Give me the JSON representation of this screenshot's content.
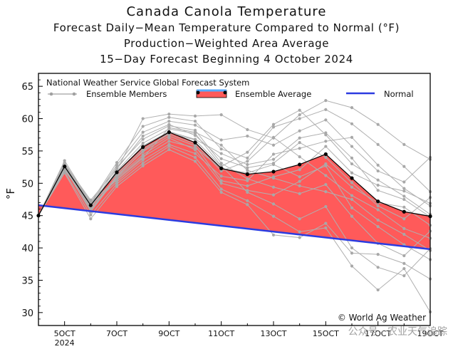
{
  "page": {
    "title": "Canada Canola Temperature",
    "subtitle1": "Forecast Daily−Mean Temperature Compared to Normal (°F)",
    "subtitle2": "Production−Weighted Area Average",
    "subtitle3": "15−Day Forecast Beginning 4 October 2024",
    "watermark": "公众号 · 农业天气追踪"
  },
  "chart_data": {
    "type": "line",
    "title": "Canada Canola Temperature",
    "ylabel": "°F",
    "xlabel": "",
    "ylim": [
      28,
      67
    ],
    "xlim": [
      4,
      19
    ],
    "grid": false,
    "source_label": "National Weather Service Global Forecast System",
    "credit": "© World Ag Weather",
    "legend": [
      {
        "name": "Ensemble Members",
        "color": "#a0a0a0"
      },
      {
        "name": "Ensemble Average",
        "color": "#ff5a5a"
      },
      {
        "name": "Normal",
        "color": "#2b3be0"
      }
    ],
    "y_ticks": [
      30,
      35,
      40,
      45,
      50,
      55,
      60,
      65
    ],
    "x_ticks": [
      {
        "x": 5,
        "label": "5OCT",
        "sublabel": "2024"
      },
      {
        "x": 7,
        "label": "7OCT",
        "sublabel": ""
      },
      {
        "x": 9,
        "label": "9OCT",
        "sublabel": ""
      },
      {
        "x": 11,
        "label": "11OCT",
        "sublabel": ""
      },
      {
        "x": 13,
        "label": "13OCT",
        "sublabel": ""
      },
      {
        "x": 15,
        "label": "15OCT",
        "sublabel": ""
      },
      {
        "x": 17,
        "label": "17OCT",
        "sublabel": ""
      },
      {
        "x": 19,
        "label": "19OCT",
        "sublabel": ""
      }
    ],
    "ensemble_average": {
      "name": "Ensemble Average",
      "x": [
        4,
        5,
        6,
        7,
        8,
        9,
        10,
        11,
        12,
        13,
        14,
        15,
        16,
        17,
        18,
        19
      ],
      "y": [
        45.0,
        52.6,
        46.6,
        51.7,
        55.6,
        57.9,
        56.3,
        52.3,
        51.4,
        51.8,
        52.9,
        54.5,
        50.8,
        47.2,
        45.6,
        44.9
      ]
    },
    "normal": {
      "name": "Normal",
      "x": [
        4,
        19
      ],
      "y": [
        46.6,
        39.8
      ]
    },
    "ensemble_members": [
      [
        45.0,
        53.5,
        47.0,
        53.2,
        58.8,
        60.2,
        59.6,
        55.3,
        53.9,
        58.7,
        60.0,
        61.4,
        59.2,
        56.0,
        52.6,
        48.7
      ],
      [
        45.0,
        53.2,
        46.8,
        52.8,
        57.9,
        59.6,
        59.0,
        56.7,
        57.3,
        55.9,
        58.1,
        59.8,
        55.7,
        51.9,
        50.2,
        54.0
      ],
      [
        45.0,
        53.1,
        46.3,
        52.5,
        56.8,
        58.9,
        58.2,
        53.1,
        50.7,
        49.4,
        48.4,
        49.8,
        44.9,
        40.7,
        38.8,
        42.6
      ],
      [
        45.0,
        52.9,
        46.5,
        51.9,
        56.2,
        58.4,
        57.7,
        52.7,
        48.6,
        46.8,
        44.5,
        46.4,
        40.0,
        37.0,
        35.7,
        39.9
      ],
      [
        45.0,
        52.8,
        46.8,
        51.6,
        55.8,
        58.0,
        56.8,
        54.6,
        52.9,
        53.7,
        57.0,
        57.8,
        53.9,
        48.9,
        47.5,
        44.8
      ],
      [
        45.0,
        52.6,
        47.2,
        51.4,
        55.3,
        57.6,
        56.1,
        51.9,
        53.4,
        57.1,
        54.1,
        51.2,
        48.1,
        45.9,
        43.0,
        41.5
      ],
      [
        45.0,
        52.7,
        46.0,
        51.2,
        54.9,
        57.3,
        55.8,
        50.4,
        49.6,
        51.0,
        52.1,
        55.7,
        51.6,
        49.7,
        48.8,
        46.9
      ],
      [
        45.0,
        52.4,
        45.6,
        50.9,
        54.4,
        57.0,
        55.2,
        50.0,
        48.9,
        48.2,
        50.3,
        53.0,
        49.4,
        47.0,
        46.3,
        43.5
      ],
      [
        45.0,
        52.2,
        46.9,
        50.7,
        54.1,
        56.5,
        55.5,
        52.3,
        51.6,
        52.9,
        51.0,
        52.7,
        46.2,
        43.3,
        40.5,
        38.2
      ],
      [
        45.0,
        52.0,
        46.6,
        50.2,
        53.6,
        56.0,
        54.6,
        51.1,
        50.4,
        54.5,
        55.4,
        56.5,
        57.1,
        52.8,
        49.2,
        46.5
      ],
      [
        45.0,
        51.8,
        45.1,
        49.9,
        53.1,
        55.7,
        54.0,
        49.1,
        47.3,
        44.9,
        42.5,
        43.1,
        37.2,
        33.5,
        36.8,
        30.1
      ],
      [
        45.0,
        51.6,
        44.5,
        49.5,
        52.7,
        55.2,
        53.4,
        48.6,
        46.7,
        42.0,
        41.6,
        43.8,
        39.2,
        39.0,
        37.6,
        35.2
      ],
      [
        45.0,
        52.5,
        46.2,
        52.0,
        60.0,
        60.7,
        60.4,
        60.6,
        58.3,
        57.0,
        60.6,
        62.8,
        61.7,
        59.1,
        56.0,
        53.7
      ],
      [
        45.0,
        53.0,
        47.4,
        52.2,
        57.3,
        59.1,
        57.4,
        53.8,
        52.4,
        53.1,
        56.3,
        54.0,
        50.1,
        46.5,
        44.5,
        47.8
      ],
      [
        45.0,
        52.3,
        45.8,
        51.0,
        55.0,
        57.8,
        56.7,
        52.6,
        54.8,
        59.1,
        61.3,
        57.5,
        53.0,
        50.5,
        48.0,
        45.2
      ],
      [
        45.0,
        52.1,
        47.0,
        50.5,
        53.9,
        58.6,
        57.9,
        55.9,
        52.0,
        50.8,
        49.6,
        48.7,
        47.5,
        44.3,
        42.1,
        39.6
      ]
    ]
  }
}
